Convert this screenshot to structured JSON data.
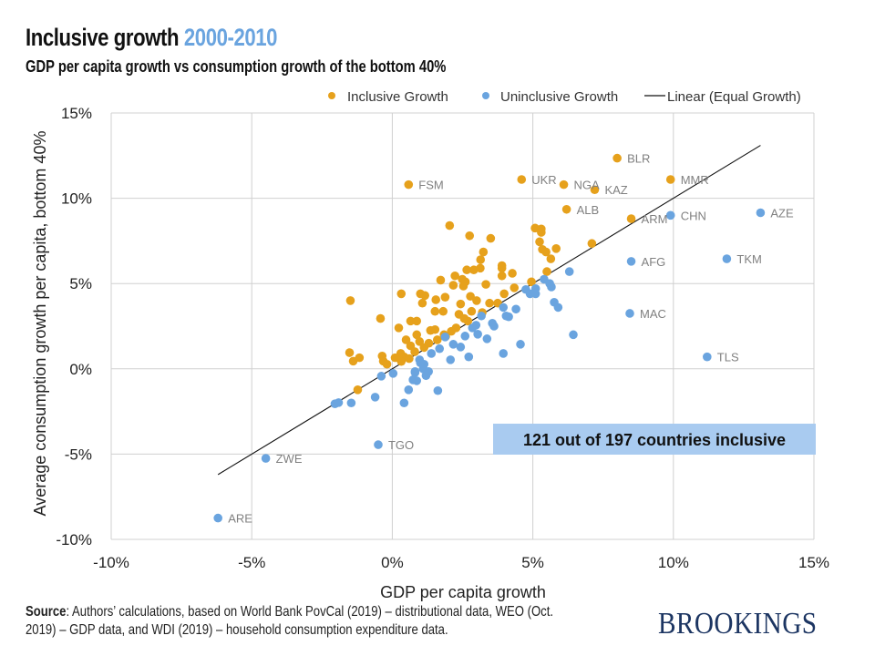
{
  "header": {
    "title": "Inclusive growth",
    "title_years": "2000-2010",
    "subtitle": "GDP per capita growth vs consumption growth of the bottom 40%"
  },
  "footer": {
    "source_label": "Source",
    "source_text_1": ": Authors’ calculations, based on World Bank PovCal (2019) – distributional data, WEO (Oct.",
    "source_text_2": "2019) – GDP data, and WDI (2019) – household consumption expenditure data.",
    "brand": "BROOKINGS"
  },
  "chart_data": {
    "type": "scatter",
    "title": "Inclusive growth 2000-2010",
    "subtitle": "GDP per capita growth vs consumption growth of the bottom 40%",
    "xlabel": "GDP per capita growth",
    "ylabel": "Average consumption growth per capita, bottom 40%",
    "xlim": [
      -10,
      15
    ],
    "ylim": [
      -10,
      15
    ],
    "x_ticks": [
      "-10%",
      "-5%",
      "0%",
      "5%",
      "10%",
      "15%"
    ],
    "y_ticks": [
      "15%",
      "10%",
      "5%",
      "0%",
      "-5%",
      "-10%"
    ],
    "grid": true,
    "legend": "top-right",
    "legend_entries": [
      "Inclusive Growth",
      "Uninclusive Growth",
      "Linear (Equal Growth)"
    ],
    "annotation": "121 out of 197 countries inclusive",
    "colors": {
      "inclusive": "#E6A11C",
      "uninclusive": "#6AA4DF",
      "line": "#111111",
      "annotation_bg": "#A9CBF0",
      "grid": "#D0D0D0"
    },
    "line": {
      "name": "Linear (Equal Growth)",
      "x": [
        -6.2,
        13.1
      ],
      "y": [
        -6.2,
        13.1
      ]
    },
    "series": [
      {
        "name": "Inclusive Growth",
        "points": [
          {
            "x": 0.58,
            "y": 10.8,
            "label": "FSM"
          },
          {
            "x": 4.6,
            "y": 11.1,
            "label": "UKR"
          },
          {
            "x": 6.1,
            "y": 10.8,
            "label": "NGA"
          },
          {
            "x": 7.2,
            "y": 10.5,
            "label": "KAZ"
          },
          {
            "x": 8.0,
            "y": 12.35,
            "label": "BLR"
          },
          {
            "x": 9.9,
            "y": 11.1,
            "label": "MMR"
          },
          {
            "x": 6.2,
            "y": 9.35,
            "label": "ALB"
          },
          {
            "x": 8.5,
            "y": 8.8,
            "label": "ARM"
          },
          {
            "x": 2.04,
            "y": 8.4
          },
          {
            "x": 2.75,
            "y": 7.8
          },
          {
            "x": 3.5,
            "y": 7.65
          },
          {
            "x": 3.24,
            "y": 6.85
          },
          {
            "x": 3.14,
            "y": 6.4
          },
          {
            "x": 5.08,
            "y": 8.25
          },
          {
            "x": 5.3,
            "y": 8.2
          },
          {
            "x": 5.3,
            "y": 8.0
          },
          {
            "x": 5.24,
            "y": 7.45
          },
          {
            "x": 5.34,
            "y": 7.0
          },
          {
            "x": 5.47,
            "y": 6.85
          },
          {
            "x": 5.64,
            "y": 6.45
          },
          {
            "x": 5.83,
            "y": 7.05
          },
          {
            "x": 7.1,
            "y": 7.35
          },
          {
            "x": 5.5,
            "y": 5.7
          },
          {
            "x": 3.9,
            "y": 6.05
          },
          {
            "x": 3.9,
            "y": 5.9
          },
          {
            "x": 3.9,
            "y": 5.45
          },
          {
            "x": 4.27,
            "y": 5.6
          },
          {
            "x": 2.65,
            "y": 5.8
          },
          {
            "x": 2.9,
            "y": 5.8
          },
          {
            "x": 3.13,
            "y": 5.9
          },
          {
            "x": 1.72,
            "y": 5.2
          },
          {
            "x": 2.23,
            "y": 5.45
          },
          {
            "x": 2.49,
            "y": 5.25
          },
          {
            "x": 2.6,
            "y": 5.1
          },
          {
            "x": 2.17,
            "y": 4.9
          },
          {
            "x": 2.53,
            "y": 4.85
          },
          {
            "x": 3.33,
            "y": 4.95
          },
          {
            "x": 4.34,
            "y": 4.75
          },
          {
            "x": 3.98,
            "y": 4.4
          },
          {
            "x": 4.95,
            "y": 5.1
          },
          {
            "x": 1.0,
            "y": 4.4
          },
          {
            "x": 1.16,
            "y": 4.3
          },
          {
            "x": 0.32,
            "y": 4.4
          },
          {
            "x": 1.55,
            "y": 4.05
          },
          {
            "x": 1.88,
            "y": 4.2
          },
          {
            "x": 1.07,
            "y": 3.85
          },
          {
            "x": 2.78,
            "y": 4.25
          },
          {
            "x": 3.0,
            "y": 4.0
          },
          {
            "x": 2.43,
            "y": 3.8
          },
          {
            "x": 3.46,
            "y": 3.85
          },
          {
            "x": 3.75,
            "y": 3.85
          },
          {
            "x": 1.52,
            "y": 3.37
          },
          {
            "x": 1.81,
            "y": 3.37
          },
          {
            "x": 2.82,
            "y": 3.37
          },
          {
            "x": 3.2,
            "y": 3.3
          },
          {
            "x": 2.37,
            "y": 3.2
          },
          {
            "x": 0.65,
            "y": 2.8
          },
          {
            "x": 0.87,
            "y": 2.8
          },
          {
            "x": 2.56,
            "y": 2.95
          },
          {
            "x": 2.69,
            "y": 2.8
          },
          {
            "x": 2.27,
            "y": 2.4
          },
          {
            "x": 1.36,
            "y": 2.25
          },
          {
            "x": 1.52,
            "y": 2.3
          },
          {
            "x": 0.87,
            "y": 2.0
          },
          {
            "x": 0.49,
            "y": 1.7
          },
          {
            "x": 1.84,
            "y": 2.0
          },
          {
            "x": 0.97,
            "y": 1.6
          },
          {
            "x": 0.65,
            "y": 1.35
          },
          {
            "x": 1.13,
            "y": 1.25
          },
          {
            "x": 0.42,
            "y": 0.7
          },
          {
            "x": 1.6,
            "y": 1.7
          },
          {
            "x": 1.3,
            "y": 1.5
          },
          {
            "x": 0.8,
            "y": 1.0
          },
          {
            "x": 1.9,
            "y": 1.9
          },
          {
            "x": 2.1,
            "y": 2.2
          },
          {
            "x": 0.3,
            "y": 0.9
          },
          {
            "x": 0.6,
            "y": 0.6
          },
          {
            "x": -1.49,
            "y": 4.0
          },
          {
            "x": -0.42,
            "y": 2.95
          },
          {
            "x": 0.23,
            "y": 2.4
          },
          {
            "x": -1.52,
            "y": 0.95
          },
          {
            "x": -1.39,
            "y": 0.45
          },
          {
            "x": -1.17,
            "y": 0.65
          },
          {
            "x": -0.36,
            "y": 0.75
          },
          {
            "x": -0.32,
            "y": 0.45
          },
          {
            "x": -0.19,
            "y": 0.27
          },
          {
            "x": 0.1,
            "y": 0.65
          },
          {
            "x": 0.32,
            "y": 0.43
          },
          {
            "x": -1.23,
            "y": -1.23
          }
        ]
      },
      {
        "name": "Uninclusive Growth",
        "points": [
          {
            "x": 9.9,
            "y": 9.0,
            "label": "CHN"
          },
          {
            "x": 13.1,
            "y": 9.15,
            "label": "AZE"
          },
          {
            "x": 8.5,
            "y": 6.3,
            "label": "AFG"
          },
          {
            "x": 11.9,
            "y": 6.45,
            "label": "TKM"
          },
          {
            "x": 8.45,
            "y": 3.25,
            "label": "MAC"
          },
          {
            "x": 11.2,
            "y": 0.7,
            "label": "TLS"
          },
          {
            "x": -0.5,
            "y": -4.45,
            "label": "TGO"
          },
          {
            "x": -4.5,
            "y": -5.25,
            "label": "ZWE"
          },
          {
            "x": -6.2,
            "y": -8.75,
            "label": "ARE"
          },
          {
            "x": 6.3,
            "y": 5.7
          },
          {
            "x": 5.4,
            "y": 5.25
          },
          {
            "x": 5.6,
            "y": 5.0
          },
          {
            "x": 5.66,
            "y": 4.8
          },
          {
            "x": 5.1,
            "y": 4.7
          },
          {
            "x": 4.9,
            "y": 4.4
          },
          {
            "x": 5.1,
            "y": 4.4
          },
          {
            "x": 4.75,
            "y": 4.65
          },
          {
            "x": 5.76,
            "y": 3.9
          },
          {
            "x": 5.9,
            "y": 3.6
          },
          {
            "x": 6.44,
            "y": 2.0
          },
          {
            "x": 4.4,
            "y": 3.5
          },
          {
            "x": 4.05,
            "y": 3.1
          },
          {
            "x": 4.14,
            "y": 3.05
          },
          {
            "x": 3.95,
            "y": 3.6
          },
          {
            "x": 3.56,
            "y": 2.67
          },
          {
            "x": 3.62,
            "y": 2.5
          },
          {
            "x": 3.17,
            "y": 3.1
          },
          {
            "x": 2.98,
            "y": 2.56
          },
          {
            "x": 2.85,
            "y": 2.4
          },
          {
            "x": 3.37,
            "y": 1.76
          },
          {
            "x": 3.04,
            "y": 2.03
          },
          {
            "x": 2.59,
            "y": 1.92
          },
          {
            "x": 2.43,
            "y": 1.28
          },
          {
            "x": 2.17,
            "y": 1.44
          },
          {
            "x": 1.68,
            "y": 1.18
          },
          {
            "x": 1.39,
            "y": 0.9
          },
          {
            "x": 1.88,
            "y": 1.87
          },
          {
            "x": 4.56,
            "y": 1.44
          },
          {
            "x": 3.95,
            "y": 0.9
          },
          {
            "x": 2.72,
            "y": 0.7
          },
          {
            "x": 2.07,
            "y": 0.53
          },
          {
            "x": 0.97,
            "y": 0.53
          },
          {
            "x": 1.13,
            "y": 0.27
          },
          {
            "x": 1.29,
            "y": -0.16
          },
          {
            "x": 0.81,
            "y": -0.16
          },
          {
            "x": 0.74,
            "y": -0.64
          },
          {
            "x": 1.62,
            "y": -1.28
          },
          {
            "x": 0.87,
            "y": -0.7
          },
          {
            "x": 1.1,
            "y": 0.0
          },
          {
            "x": 1.0,
            "y": 0.35
          },
          {
            "x": 1.2,
            "y": -0.4
          },
          {
            "x": -0.39,
            "y": -0.43
          },
          {
            "x": 0.03,
            "y": -0.27
          },
          {
            "x": 0.58,
            "y": -1.23
          },
          {
            "x": 0.42,
            "y": -2.0
          },
          {
            "x": -0.61,
            "y": -1.66
          },
          {
            "x": -1.46,
            "y": -2.0
          },
          {
            "x": -2.04,
            "y": -2.05
          },
          {
            "x": -1.91,
            "y": -1.98
          },
          {
            "x": 0.74,
            "y": -0.65
          },
          {
            "x": 0.81,
            "y": -0.22
          }
        ]
      }
    ]
  }
}
